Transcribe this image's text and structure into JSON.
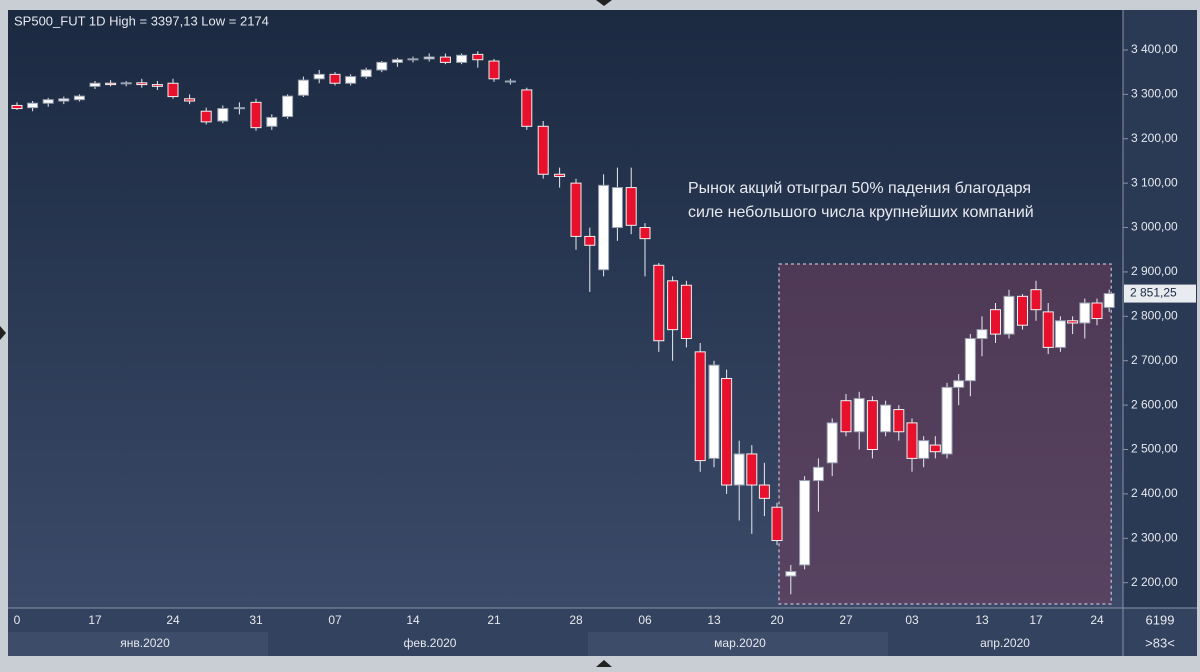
{
  "chart_data": {
    "type": "candlestick",
    "title": "SP500_FUT 1D High = 3397,13 Low = 2174",
    "annotation": [
      "Рынок акций отыграл 50% падения благодаря",
      "силе небольшого числа крупнейших компаний"
    ],
    "categories": [
      "0",
      null,
      null,
      null,
      null,
      "17",
      null,
      null,
      null,
      null,
      "24",
      null,
      null,
      null,
      null,
      "31",
      null,
      null,
      null,
      null,
      "07",
      null,
      null,
      null,
      null,
      "14",
      null,
      null,
      null,
      null,
      "21",
      null,
      null,
      null,
      null,
      "28",
      null,
      null,
      null,
      null,
      "06",
      null,
      null,
      null,
      null,
      "13",
      null,
      null,
      null,
      null,
      "20",
      null,
      null,
      null,
      null,
      "27",
      null,
      null,
      null,
      null,
      "03",
      null,
      null,
      null,
      null,
      null,
      "13",
      null,
      null,
      null,
      "17",
      null,
      null,
      null,
      null,
      "24",
      null
    ],
    "month_labels": [
      "янв.2020",
      "фев.2020",
      "мар.2020",
      "апр.2020"
    ],
    "open": [
      3275,
      3270,
      3280,
      3285,
      3288,
      3318,
      3325,
      3324,
      3326,
      3322,
      3325,
      3290,
      3262,
      3240,
      3268,
      3282,
      3228,
      3250,
      3298,
      3335,
      3345,
      3325,
      3340,
      3355,
      3372,
      3378,
      3380,
      3384,
      3372,
      3390,
      3375,
      3330,
      3310,
      3228,
      3120,
      3100,
      2980,
      2905,
      3000,
      3090,
      3000,
      2915,
      2880,
      2870,
      2720,
      2480,
      2660,
      2420,
      2490,
      2420,
      2370,
      2215,
      2240,
      2430,
      2470,
      2610,
      2540,
      2610,
      2540,
      2590,
      2560,
      2480,
      2510,
      2490,
      2640,
      2655,
      2750,
      2815,
      2760,
      2845,
      2860,
      2810,
      2730,
      2790,
      2785,
      2830,
      2820
    ],
    "high": [
      3282,
      3285,
      3292,
      3295,
      3300,
      3330,
      3332,
      3330,
      3335,
      3330,
      3335,
      3300,
      3270,
      3275,
      3282,
      3290,
      3255,
      3300,
      3340,
      3355,
      3350,
      3345,
      3360,
      3375,
      3382,
      3385,
      3392,
      3392,
      3392,
      3397.13,
      3380,
      3335,
      3315,
      3240,
      3135,
      3110,
      3000,
      3120,
      3135,
      3135,
      3010,
      2920,
      2890,
      2880,
      2740,
      2700,
      2680,
      2520,
      2510,
      2470,
      2380,
      2240,
      2440,
      2480,
      2570,
      2625,
      2630,
      2620,
      2610,
      2600,
      2570,
      2530,
      2530,
      2650,
      2670,
      2760,
      2800,
      2830,
      2860,
      2850,
      2880,
      2830,
      2800,
      2800,
      2840,
      2840,
      2860
    ],
    "low": [
      3265,
      3262,
      3272,
      3278,
      3284,
      3312,
      3318,
      3318,
      3315,
      3310,
      3290,
      3278,
      3232,
      3235,
      3255,
      3218,
      3220,
      3245,
      3294,
      3325,
      3320,
      3320,
      3335,
      3350,
      3362,
      3372,
      3374,
      3368,
      3368,
      3360,
      3328,
      3322,
      3220,
      3110,
      3090,
      2950,
      2855,
      2890,
      2970,
      2985,
      2890,
      2720,
      2700,
      2730,
      2450,
      2460,
      2400,
      2340,
      2310,
      2350,
      2285,
      2174,
      2230,
      2360,
      2440,
      2530,
      2500,
      2480,
      2530,
      2520,
      2450,
      2460,
      2480,
      2480,
      2600,
      2620,
      2710,
      2740,
      2750,
      2770,
      2790,
      2715,
      2720,
      2760,
      2750,
      2780,
      2810
    ],
    "close": [
      3268,
      3280,
      3288,
      3290,
      3296,
      3325,
      3322,
      3326,
      3322,
      3318,
      3295,
      3285,
      3238,
      3268,
      3270,
      3225,
      3248,
      3296,
      3332,
      3345,
      3325,
      3340,
      3355,
      3372,
      3378,
      3380,
      3384,
      3372,
      3388,
      3378,
      3335,
      3330,
      3228,
      3120,
      3115,
      2980,
      2960,
      3095,
      3090,
      3005,
      2975,
      2745,
      2770,
      2750,
      2475,
      2690,
      2420,
      2490,
      2420,
      2390,
      2295,
      2225,
      2430,
      2460,
      2560,
      2540,
      2615,
      2500,
      2600,
      2540,
      2480,
      2520,
      2495,
      2640,
      2655,
      2750,
      2770,
      2760,
      2845,
      2780,
      2815,
      2730,
      2790,
      2785,
      2830,
      2795,
      2851.25
    ],
    "last_price_label": "2 851,25",
    "up_color": "#ffffff",
    "down_color": "#e8112d",
    "ylim": [
      2143,
      3490
    ],
    "yticks": [
      {
        "value": 2200,
        "label": "2 200,00"
      },
      {
        "value": 2300,
        "label": "2 300,00"
      },
      {
        "value": 2400,
        "label": "2 400,00"
      },
      {
        "value": 2500,
        "label": "2 500,00"
      },
      {
        "value": 2600,
        "label": "2 600,00"
      },
      {
        "value": 2700,
        "label": "2 700,00"
      },
      {
        "value": 2800,
        "label": "2 800,00"
      },
      {
        "value": 2900,
        "label": "2 900,00"
      },
      {
        "value": 3000,
        "label": "3 000,00"
      },
      {
        "value": 3100,
        "label": "3 100,00"
      },
      {
        "value": 3200,
        "label": "3 200,00"
      },
      {
        "value": 3300,
        "label": "3 300,00"
      },
      {
        "value": 3400,
        "label": "3 400,00"
      }
    ],
    "corner_count": "6199",
    "corner_zoom": ">83<"
  }
}
